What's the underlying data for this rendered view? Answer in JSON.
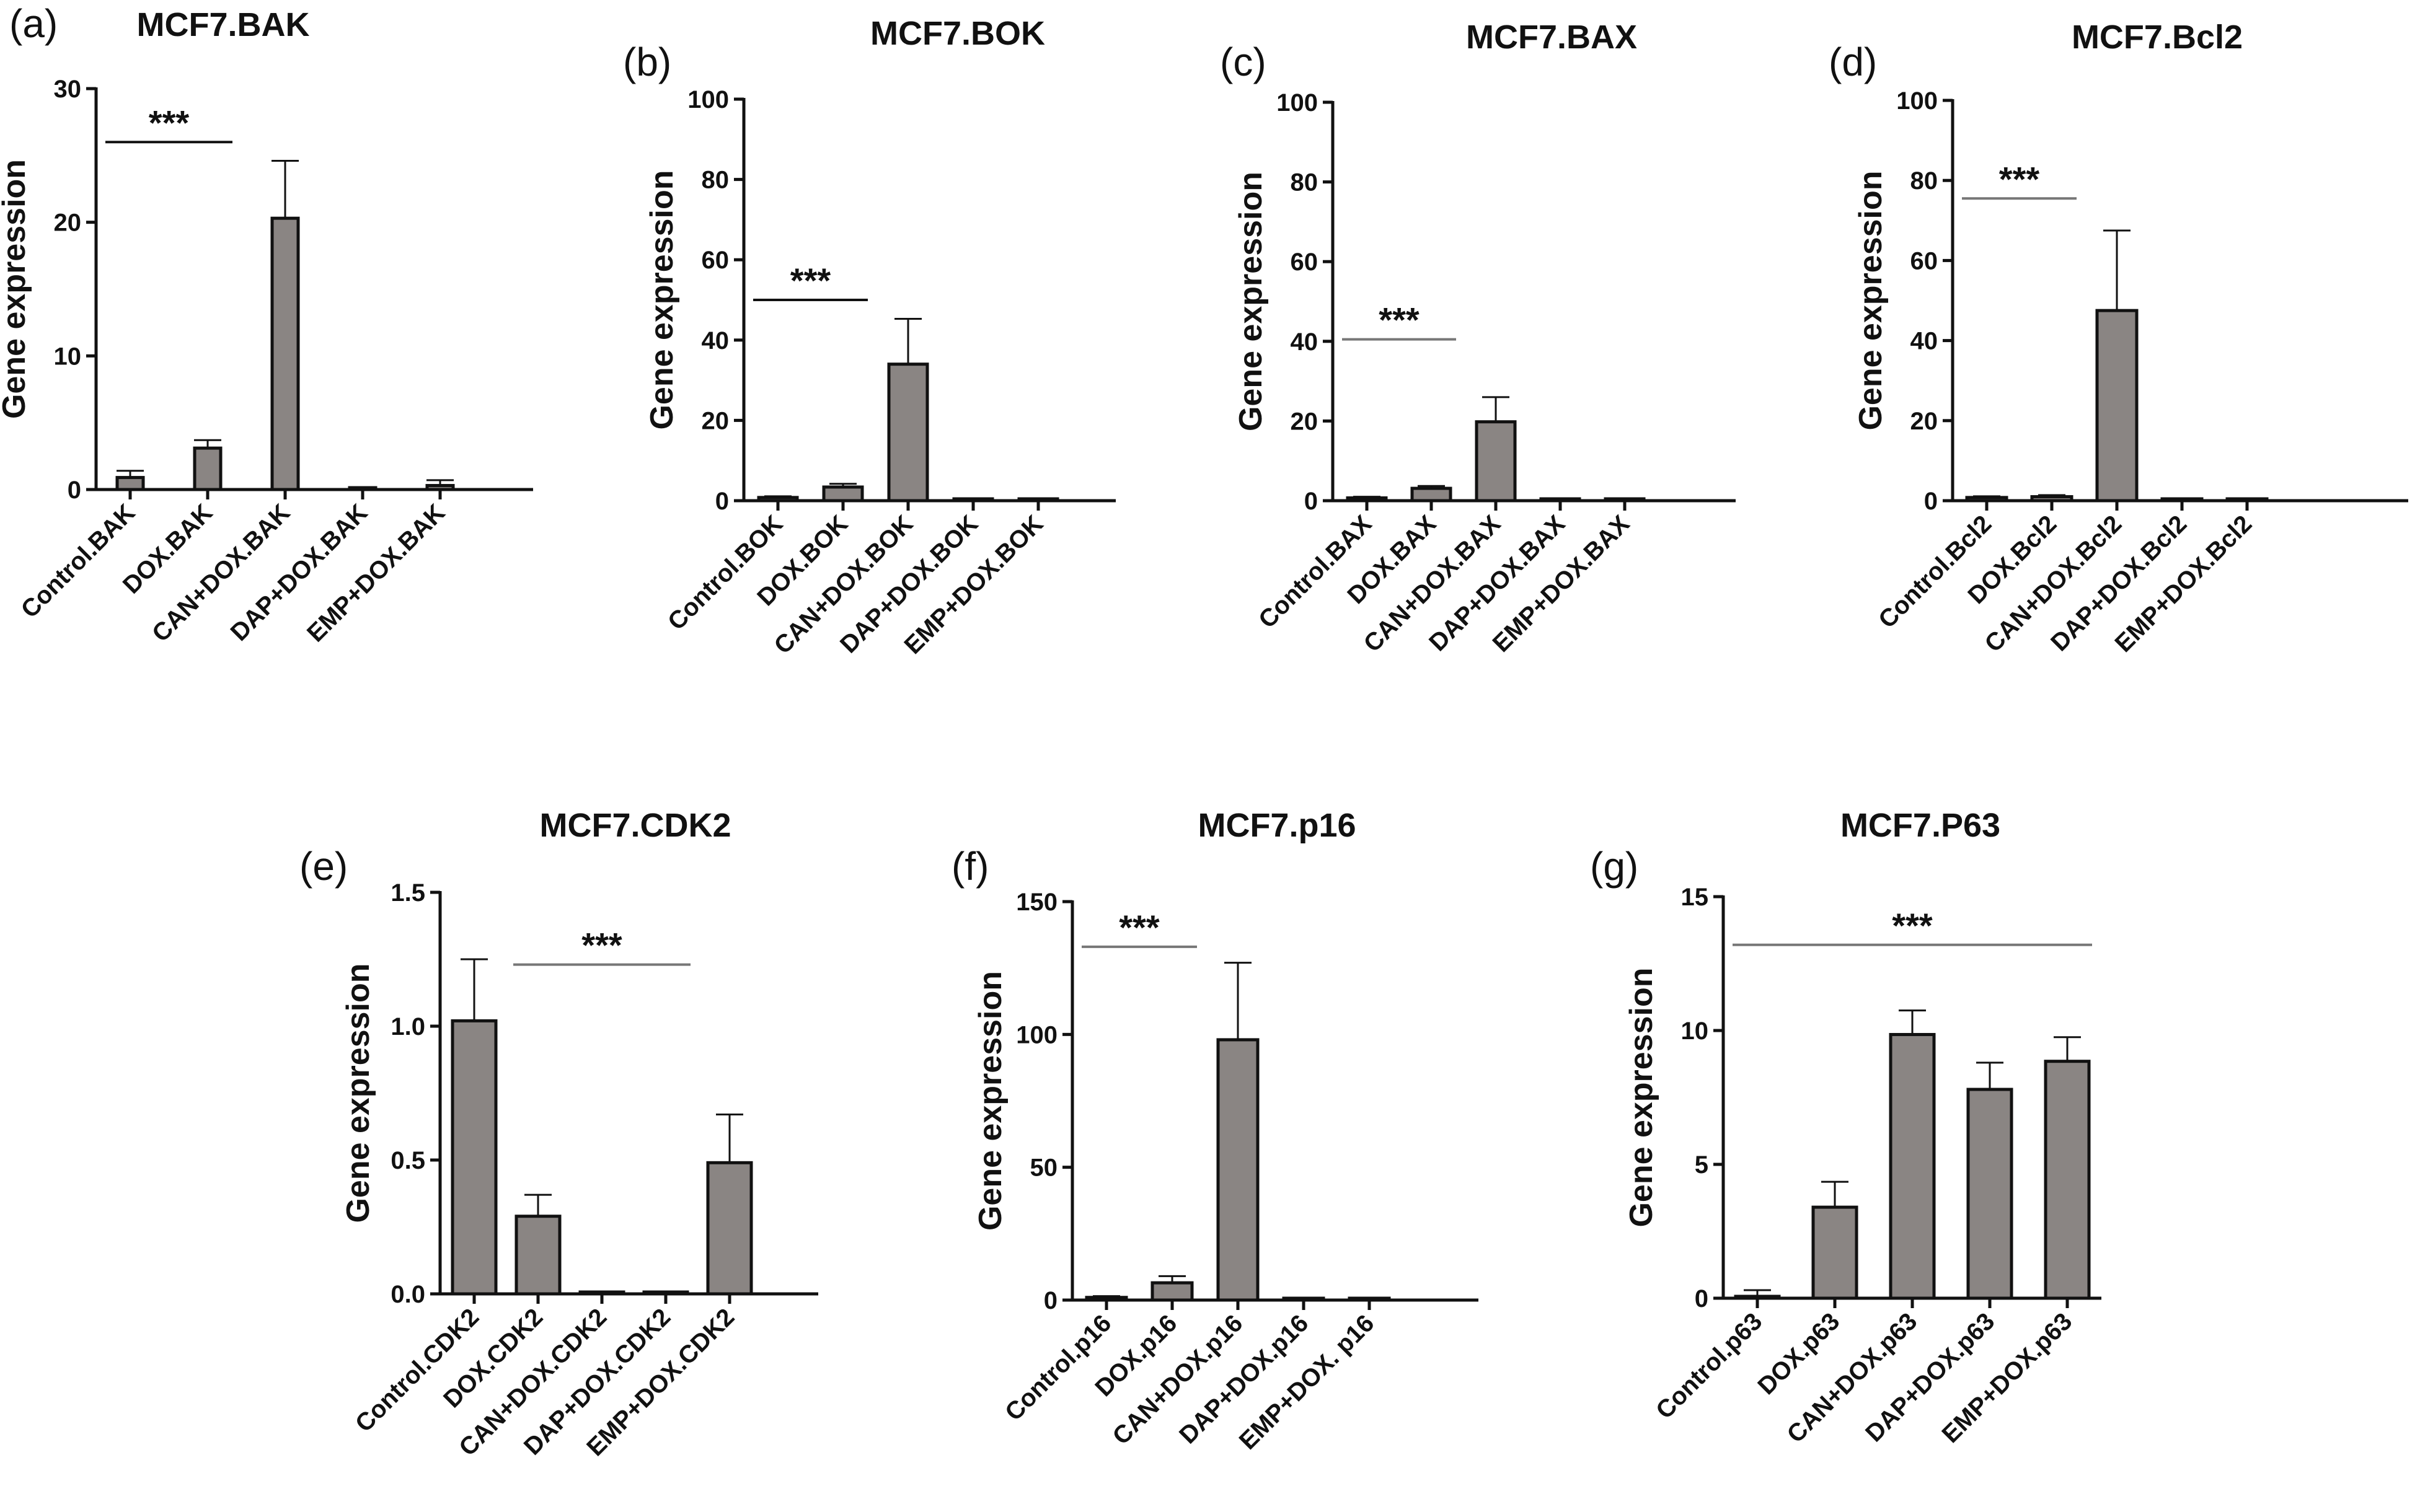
{
  "colors": {
    "bar": "#8a8583",
    "stroke": "#111111",
    "sig_line": "#777777",
    "background": "#ffffff"
  },
  "chart_data": [
    {
      "type": "bar",
      "panel": "(a)",
      "title": "MCF7.BAK",
      "ylabel": "Gene expression",
      "xlabel": "",
      "ylim": [
        0,
        30
      ],
      "yticks": [
        0,
        10,
        20,
        30
      ],
      "categories": [
        "Control.BAK",
        "DOX.BAK",
        "CAN+DOX.BAK",
        "DAP+DOX.BAK",
        "EMP+DOX.BAK"
      ],
      "values": [
        0.9,
        3.1,
        20.3,
        0.0,
        0.3
      ],
      "errors": [
        0.5,
        0.6,
        4.3,
        0.0,
        0.4
      ],
      "significance": {
        "label": "***",
        "from": 0,
        "to": 1,
        "level": 26.0
      }
    },
    {
      "type": "bar",
      "panel": "(b)",
      "title": "MCF7.BOK",
      "ylabel": "Gene expression",
      "xlabel": "",
      "ylim": [
        0,
        100
      ],
      "yticks": [
        0,
        20,
        40,
        60,
        80,
        100
      ],
      "categories": [
        "Control.BOK",
        "DOX.BOK",
        "CAN+DOX.BOK",
        "DAP+DOX.BOK",
        "EMP+DOX.BOK"
      ],
      "values": [
        0.8,
        3.4,
        34.0,
        0.0,
        0.0
      ],
      "errors": [
        0.3,
        0.8,
        11.3,
        0.0,
        0.0
      ],
      "significance": {
        "label": "***",
        "from": 0,
        "to": 1,
        "level": 50.0
      }
    },
    {
      "type": "bar",
      "panel": "(c)",
      "title": "MCF7.BAX",
      "ylabel": "Gene expression",
      "xlabel": "",
      "ylim": [
        0,
        100
      ],
      "yticks": [
        0,
        20,
        40,
        60,
        80,
        100
      ],
      "categories": [
        "Control.BAX",
        "DOX.BAX",
        "CAN+DOX.BAX",
        "DAP+DOX.BAX",
        "EMP+DOX.BAX"
      ],
      "values": [
        0.7,
        3.1,
        19.8,
        0.0,
        0.0
      ],
      "errors": [
        0.3,
        0.6,
        6.2,
        0.0,
        0.0
      ],
      "significance": {
        "label": "***",
        "from": 0,
        "to": 1,
        "level": 40.5
      }
    },
    {
      "type": "bar",
      "panel": "(d)",
      "title": "MCF7.Bcl2",
      "ylabel": "Gene expression",
      "xlabel": "",
      "ylim": [
        0,
        100
      ],
      "yticks": [
        0,
        20,
        40,
        60,
        80,
        100
      ],
      "categories": [
        "Control.Bcl2",
        "DOX.Bcl2",
        "CAN+DOX.Bcl2",
        "DAP+DOX.Bcl2",
        "EMP+DOX.Bcl2"
      ],
      "values": [
        0.8,
        1.0,
        47.5,
        0.0,
        0.0
      ],
      "errors": [
        0.3,
        0.4,
        20.0,
        0.0,
        0.0
      ],
      "significance": {
        "label": "***",
        "from": 0,
        "to": 1,
        "level": 75.5
      }
    },
    {
      "type": "bar",
      "panel": "(e)",
      "title": "MCF7.CDK2",
      "ylabel": "Gene expression",
      "xlabel": "",
      "ylim": [
        0,
        1.5
      ],
      "yticks": [
        "0.0",
        "0.5",
        "1.0",
        "1.5"
      ],
      "categories": [
        "Control.CDK2",
        "DOX.CDK2",
        "CAN+DOX.CDK2",
        "DAP+DOX.CDK2",
        "EMP+DOX.CDK2"
      ],
      "values": [
        1.02,
        0.29,
        0.005,
        0.005,
        0.49
      ],
      "errors": [
        0.23,
        0.08,
        0.0,
        0.0,
        0.18
      ],
      "significance": {
        "label": "***",
        "from": 1,
        "to": 3,
        "level": 1.23
      }
    },
    {
      "type": "bar",
      "panel": "(f)",
      "title": "MCF7.p16",
      "ylabel": "Gene expression",
      "xlabel": "",
      "ylim": [
        0,
        150
      ],
      "yticks": [
        0,
        50,
        100,
        150
      ],
      "categories": [
        "Control.p16",
        "DOX.p16",
        "CAN+DOX.p16",
        "DAP+DOX.p16",
        "EMP+DOX. p16"
      ],
      "values": [
        1.0,
        6.5,
        98.0,
        0.0,
        0.0
      ],
      "errors": [
        0.5,
        2.5,
        29.0,
        0.0,
        0.0
      ],
      "significance": {
        "label": "***",
        "from": 0,
        "to": 1,
        "level": 133.0
      }
    },
    {
      "type": "bar",
      "panel": "(g)",
      "title": "MCF7.P63",
      "ylabel": "Gene expression",
      "xlabel": "",
      "ylim": [
        0,
        15
      ],
      "yticks": [
        0,
        5,
        10,
        15
      ],
      "categories": [
        "Control.p63",
        "DOX.p63",
        "CAN+DOX.p63",
        "DAP+DOX.p63",
        "EMP+DOX.p63"
      ],
      "values": [
        0.05,
        3.4,
        9.85,
        7.8,
        8.85
      ],
      "errors": [
        0.25,
        0.95,
        0.9,
        1.0,
        0.9
      ],
      "significance": {
        "label": "***",
        "from": 0,
        "to": 4,
        "level": 13.2
      }
    }
  ]
}
